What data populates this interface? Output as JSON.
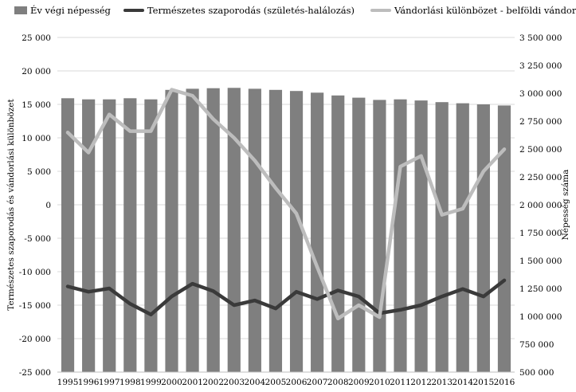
{
  "legend": {
    "population": "Év végi népesség",
    "natural": "Természetes szaporodás (születés-halálozás)",
    "migration": "Vándorlási különbözet - belföldi vándorlás"
  },
  "chart_data": {
    "type": "bar",
    "categories": [
      "1995",
      "1996",
      "1997",
      "1998",
      "1999",
      "2000",
      "2001",
      "2002",
      "2003",
      "2004",
      "2005",
      "2006",
      "2007",
      "2008",
      "2009",
      "2010",
      "2011",
      "2012",
      "2013",
      "2014",
      "2015",
      "2016"
    ],
    "ylabel_left": "Természetes szaporodás és vándorlási különbözet",
    "ylabel_right": "Népesség száma",
    "ylim_left": [
      -25000,
      25000
    ],
    "ylim_right": [
      500000,
      3500000
    ],
    "left_ticks": [
      "25 000",
      "20 000",
      "15 000",
      "10 000",
      "5 000",
      "0",
      "-5 000",
      "-10 000",
      "-15 000",
      "-20 000",
      "-25 000"
    ],
    "right_ticks": [
      "3 500 000",
      "3 250 000",
      "3 000 000",
      "2 750 000",
      "2 500 000",
      "2 250 000",
      "2 000 000",
      "1 750 000",
      "1 500 000",
      "1 250 000",
      "1 000 000",
      "750 000",
      "500 000"
    ],
    "series": [
      {
        "name": "Év végi népesség",
        "type": "bar",
        "axis": "right",
        "color": "#7f7f7f",
        "values": [
          2955000,
          2945000,
          2945000,
          2955000,
          2945000,
          3030000,
          3040000,
          3045000,
          3048000,
          3040000,
          3030000,
          3020000,
          3005000,
          2980000,
          2960000,
          2940000,
          2945000,
          2935000,
          2920000,
          2910000,
          2900000,
          2890000
        ]
      },
      {
        "name": "Természetes szaporodás (születés-halálozás)",
        "type": "line",
        "axis": "left",
        "color": "#3a3a3a",
        "values": [
          -12200,
          -13000,
          -12500,
          -14800,
          -16400,
          -13700,
          -11800,
          -12900,
          -15000,
          -14300,
          -15500,
          -13000,
          -14100,
          -12800,
          -13700,
          -16200,
          -15700,
          -15000,
          -13700,
          -12600,
          -13700,
          -11300
        ]
      },
      {
        "name": "Vándorlási különbözet - belföldi vándorlás",
        "type": "line",
        "axis": "left",
        "color": "#bdbdbd",
        "values": [
          10800,
          7800,
          13500,
          11000,
          11000,
          17200,
          16300,
          12800,
          10000,
          6600,
          2500,
          -1300,
          -9300,
          -17000,
          -15000,
          -16800,
          5700,
          7300,
          -1500,
          -600,
          5000,
          8300
        ]
      }
    ],
    "grid": "horizontal",
    "legend_position": "top"
  }
}
